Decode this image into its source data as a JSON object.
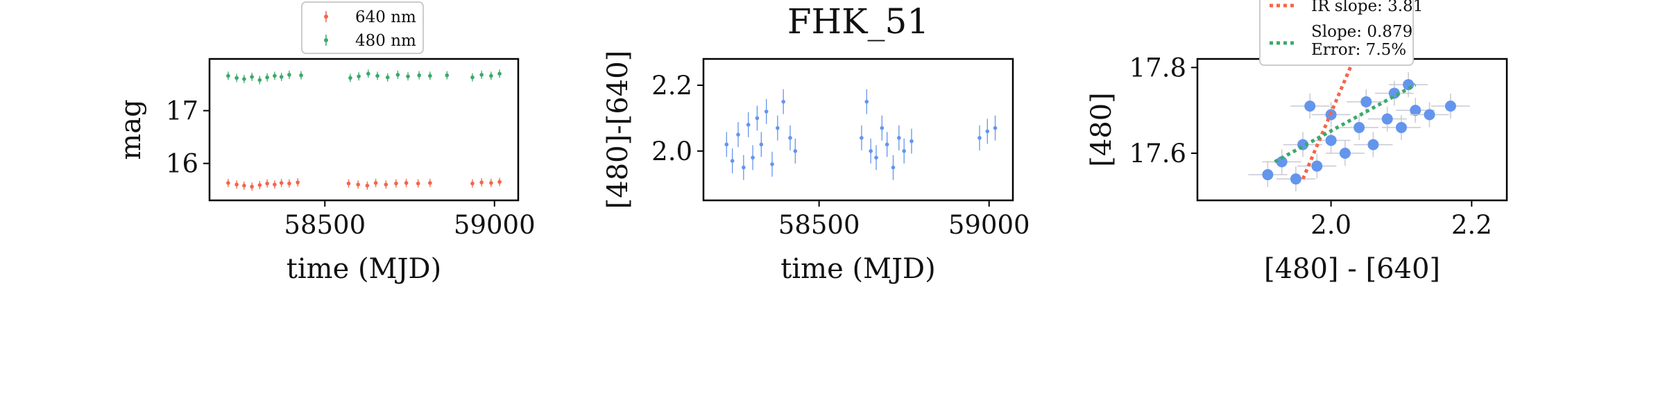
{
  "chart_data": [
    {
      "type": "scatter",
      "title": "",
      "xlabel": "time (MJD)",
      "ylabel": "mag",
      "xlim": [
        58160,
        59070
      ],
      "ylim": [
        17.98,
        15.3
      ],
      "y_inverted": true,
      "xticks": [
        58500,
        59000
      ],
      "yticks": [
        16,
        17
      ],
      "xtick_labels": [
        "58500",
        "59000"
      ],
      "ytick_labels": [
        "16",
        "17"
      ],
      "legend_location": "above-center",
      "series": [
        {
          "name": "640 nm",
          "color": "#f4664a",
          "points": [
            [
              58215,
              15.63
            ],
            [
              58240,
              15.6
            ],
            [
              58262,
              15.58
            ],
            [
              58285,
              15.56
            ],
            [
              58308,
              15.59
            ],
            [
              58330,
              15.62
            ],
            [
              58352,
              15.6
            ],
            [
              58372,
              15.63
            ],
            [
              58395,
              15.62
            ],
            [
              58420,
              15.64
            ],
            [
              58570,
              15.62
            ],
            [
              58598,
              15.6
            ],
            [
              58625,
              15.58
            ],
            [
              58650,
              15.63
            ],
            [
              58680,
              15.6
            ],
            [
              58710,
              15.62
            ],
            [
              58740,
              15.63
            ],
            [
              58775,
              15.62
            ],
            [
              58810,
              15.63
            ],
            [
              58935,
              15.62
            ],
            [
              58962,
              15.64
            ],
            [
              58990,
              15.63
            ],
            [
              59015,
              15.65
            ]
          ]
        },
        {
          "name": "480 nm",
          "color": "#3aaa6a",
          "points": [
            [
              58215,
              17.66
            ],
            [
              58240,
              17.62
            ],
            [
              58262,
              17.6
            ],
            [
              58285,
              17.64
            ],
            [
              58308,
              17.58
            ],
            [
              58330,
              17.63
            ],
            [
              58352,
              17.66
            ],
            [
              58372,
              17.64
            ],
            [
              58395,
              17.68
            ],
            [
              58430,
              17.67
            ],
            [
              58575,
              17.62
            ],
            [
              58600,
              17.65
            ],
            [
              58628,
              17.7
            ],
            [
              58655,
              17.66
            ],
            [
              58685,
              17.63
            ],
            [
              58715,
              17.68
            ],
            [
              58745,
              17.65
            ],
            [
              58778,
              17.67
            ],
            [
              58810,
              17.66
            ],
            [
              58860,
              17.67
            ],
            [
              58935,
              17.63
            ],
            [
              58962,
              17.68
            ],
            [
              58990,
              17.66
            ],
            [
              59015,
              17.7
            ]
          ]
        }
      ]
    },
    {
      "type": "scatter",
      "title": "FHK_51",
      "xlabel": "time (MJD)",
      "ylabel": "[480]-[640]",
      "xlim": [
        58160,
        59070
      ],
      "ylim": [
        2.28,
        1.85
      ],
      "y_inverted": true,
      "xticks": [
        58500,
        59000
      ],
      "yticks": [
        2.0,
        2.2
      ],
      "xtick_labels": [
        "58500",
        "59000"
      ],
      "ytick_labels": [
        "2.0",
        "2.2"
      ],
      "series": [
        {
          "name": "",
          "color": "#6495ed",
          "points": [
            [
              58228,
              2.02
            ],
            [
              58245,
              1.97
            ],
            [
              58262,
              2.05
            ],
            [
              58278,
              1.95
            ],
            [
              58292,
              2.08
            ],
            [
              58305,
              1.98
            ],
            [
              58318,
              2.1
            ],
            [
              58330,
              2.02
            ],
            [
              58345,
              2.12
            ],
            [
              58362,
              1.96
            ],
            [
              58378,
              2.07
            ],
            [
              58395,
              2.15
            ],
            [
              58415,
              2.04
            ],
            [
              58430,
              2.0
            ],
            [
              58625,
              2.04
            ],
            [
              58640,
              2.15
            ],
            [
              58652,
              2.0
            ],
            [
              58668,
              1.98
            ],
            [
              58685,
              2.07
            ],
            [
              58700,
              2.02
            ],
            [
              58718,
              1.95
            ],
            [
              58735,
              2.04
            ],
            [
              58750,
              2.0
            ],
            [
              58772,
              2.03
            ],
            [
              58972,
              2.04
            ],
            [
              58995,
              2.06
            ],
            [
              59018,
              2.07
            ]
          ]
        }
      ]
    },
    {
      "type": "scatter",
      "title": "",
      "xlabel": "[480] - [640]",
      "ylabel": "[480]",
      "xlim": [
        1.81,
        2.25
      ],
      "ylim": [
        17.82,
        17.49
      ],
      "y_inverted": true,
      "xticks": [
        2.0,
        2.2
      ],
      "yticks": [
        17.6,
        17.8
      ],
      "xtick_labels": [
        "2.0",
        "2.2"
      ],
      "ytick_labels": [
        "17.6",
        "17.8"
      ],
      "legend_location": "above-center",
      "series": [
        {
          "name": "",
          "color": "#6495ed",
          "points": [
            [
              1.91,
              17.55
            ],
            [
              1.93,
              17.58
            ],
            [
              1.95,
              17.54
            ],
            [
              1.96,
              17.62
            ],
            [
              1.98,
              17.57
            ],
            [
              2.0,
              17.63
            ],
            [
              2.02,
              17.6
            ],
            [
              2.04,
              17.66
            ],
            [
              2.06,
              17.62
            ],
            [
              2.08,
              17.68
            ],
            [
              2.1,
              17.66
            ],
            [
              2.12,
              17.7
            ],
            [
              2.14,
              17.69
            ],
            [
              2.17,
              17.71
            ],
            [
              2.05,
              17.72
            ],
            [
              2.09,
              17.74
            ],
            [
              2.0,
              17.69
            ],
            [
              1.97,
              17.71
            ],
            [
              2.11,
              17.76
            ]
          ]
        }
      ],
      "fits": [
        {
          "name": "IR slope: 3.81",
          "color": "#f4664a",
          "x": [
            1.96,
            2.03
          ],
          "y": [
            17.54,
            17.81
          ]
        },
        {
          "name": "Slope: 0.879",
          "extra": "Error: 7.5%",
          "color": "#3aaa6a",
          "x": [
            1.92,
            2.12
          ],
          "y": [
            17.58,
            17.76
          ]
        }
      ]
    }
  ]
}
